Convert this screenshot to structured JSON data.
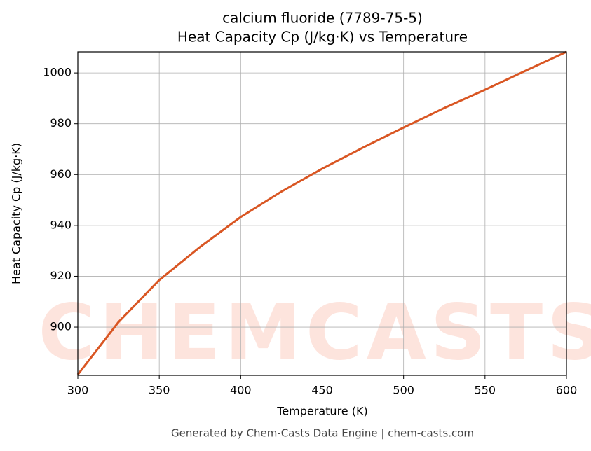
{
  "chart_data": {
    "type": "line",
    "title": "calcium fluoride (7789-75-5)",
    "subtitle": "Heat Capacity Cp (J/kg·K) vs Temperature",
    "x_label": "Temperature (K)",
    "y_label": "Heat Capacity Cp (J/kg·K)",
    "footer": "Generated by Chem-Casts Data Engine | chem-casts.com",
    "watermark": "CHEMCASTS",
    "x": [
      300,
      325,
      350,
      375,
      400,
      425,
      450,
      475,
      500,
      525,
      550,
      575,
      600
    ],
    "series": [
      {
        "name": "Heat Capacity Cp",
        "color": "#d95623",
        "values": [
          881.3,
          902.0,
          918.5,
          931.5,
          943.3,
          953.3,
          962.3,
          970.6,
          978.5,
          986.2,
          993.4,
          1000.9,
          1008.3
        ]
      }
    ],
    "xlim": [
      300,
      600
    ],
    "xticks": [
      300,
      350,
      400,
      450,
      500,
      550,
      600
    ],
    "ylim": [
      881.0,
      1008.3
    ],
    "yticks": [
      900,
      920,
      940,
      960,
      980,
      1000
    ],
    "grid": true
  }
}
